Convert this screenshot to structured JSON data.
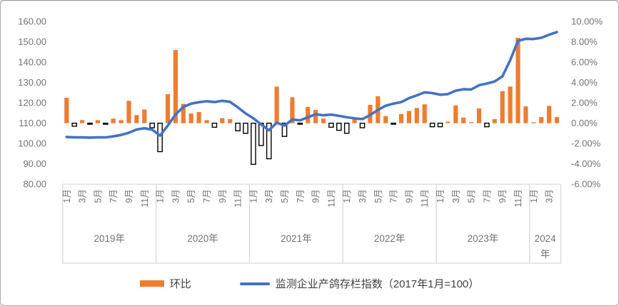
{
  "chart_data": {
    "type": "combo_bar_line",
    "title": "",
    "legend_position": "bottom",
    "grid": false,
    "colors": {
      "bar_positive": "#ED7D31",
      "bar_negative_fill": "#FFFFFF",
      "bar_negative_border": "#000000",
      "line": "#4472C4",
      "axis_text": "#737373",
      "axis_line": "#d6d6d6"
    },
    "left_axis": {
      "min": 80,
      "max": 160,
      "step": 10,
      "tick_labels": [
        "160.00",
        "150.00",
        "140.00",
        "130.00",
        "120.00",
        "110.00",
        "100.00",
        "90.00",
        "80.00"
      ]
    },
    "right_axis": {
      "min": -6,
      "max": 10,
      "step": 2,
      "unit": "%",
      "tick_labels": [
        "10.00%",
        "8.00%",
        "6.00%",
        "4.00%",
        "2.00%",
        "0.00%",
        "-2.00%",
        "-4.00%",
        "-6.00%"
      ]
    },
    "x_axis": {
      "years": [
        {
          "label": "2019年",
          "months": 12
        },
        {
          "label": "2020年",
          "months": 12
        },
        {
          "label": "2021年",
          "months": 12
        },
        {
          "label": "2022年",
          "months": 12
        },
        {
          "label": "2023年",
          "months": 12
        },
        {
          "label": "2024年",
          "months": 4
        }
      ],
      "month_tick_labels": [
        "1月",
        "3月",
        "5月",
        "7月",
        "9月",
        "11月"
      ],
      "month_tick_step": 2
    },
    "series": [
      {
        "name": "环比",
        "type": "bar",
        "axis": "right",
        "values": [
          2.5,
          -0.3,
          0.3,
          -0.1,
          0.3,
          -0.1,
          0.45,
          0.3,
          2.2,
          0.8,
          1.35,
          -0.45,
          -2.8,
          2.85,
          7.2,
          1.9,
          0.95,
          1.1,
          0.3,
          -0.4,
          0.5,
          0.4,
          -0.75,
          -1.0,
          -4.05,
          -2.2,
          -3.5,
          3.6,
          -1.3,
          2.55,
          -0.1,
          1.6,
          1.3,
          0.45,
          -0.4,
          -0.7,
          -1.0,
          0.5,
          -0.45,
          1.8,
          2.65,
          0.7,
          -0.1,
          0.9,
          1.2,
          1.5,
          1.85,
          -0.35,
          -0.35,
          0.15,
          1.75,
          0.55,
          0.1,
          1.45,
          -0.35,
          0.4,
          3.15,
          3.6,
          8.4,
          1.65,
          0.1,
          0.6,
          1.7,
          0.6
        ]
      },
      {
        "name": "监测企业产鸽存栏指数（2017年1月=100）",
        "type": "line",
        "axis": "left",
        "values": [
          103.2,
          103.0,
          103.0,
          102.9,
          103.0,
          103.0,
          103.5,
          104.2,
          105.3,
          106.9,
          107.5,
          106.8,
          103.9,
          108.8,
          114.3,
          118.0,
          119.6,
          120.3,
          120.8,
          120.4,
          121.0,
          120.5,
          117.8,
          114.8,
          112.4,
          109.4,
          106.5,
          110.2,
          108.8,
          111.8,
          111.4,
          112.9,
          114.4,
          113.9,
          114.2,
          113.6,
          112.9,
          112.4,
          112.0,
          114.0,
          116.5,
          118.6,
          119.6,
          120.4,
          122.3,
          123.7,
          125.2,
          124.8,
          124.0,
          124.3,
          126.0,
          126.7,
          126.6,
          128.7,
          129.5,
          130.5,
          133.0,
          141.0,
          150.5,
          151.5,
          151.4,
          152.0,
          153.5,
          154.8
        ]
      }
    ]
  },
  "legend": {
    "bar_label": "环比",
    "line_label": "监测企业产鸽存栏指数（2017年1月=100）"
  }
}
